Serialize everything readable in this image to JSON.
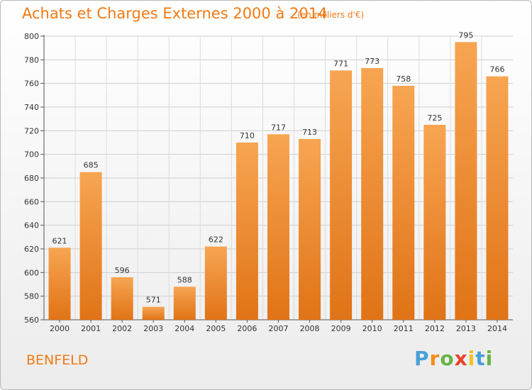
{
  "header": {
    "title": "Achats et Charges Externes 2000 à 2014",
    "subtitle": "(en milliers d'€)"
  },
  "footer": {
    "city": "BENFELD",
    "brand": [
      "P",
      "r",
      "o",
      "x",
      "i",
      "t",
      "i"
    ],
    "brand_colors": [
      "#4a9fd8",
      "#f28c1e",
      "#67b346",
      "#e8412c",
      "#f2c11e",
      "#4a9fd8",
      "#67b346"
    ]
  },
  "chart_data": {
    "type": "bar",
    "title": "Achats et Charges Externes 2000 à 2014",
    "subtitle": "(en milliers d'€)",
    "categories": [
      "2000",
      "2001",
      "2002",
      "2003",
      "2004",
      "2005",
      "2006",
      "2007",
      "2008",
      "2009",
      "2010",
      "2011",
      "2012",
      "2013",
      "2014"
    ],
    "values": [
      621,
      685,
      596,
      571,
      588,
      622,
      710,
      717,
      713,
      771,
      773,
      758,
      725,
      795,
      766
    ],
    "ylim": [
      560,
      800
    ],
    "yticks": [
      560,
      580,
      600,
      620,
      640,
      660,
      680,
      700,
      720,
      740,
      760,
      780,
      800
    ],
    "grid": true,
    "bar_color_top": "#f7a552",
    "bar_color_bottom": "#e07316"
  }
}
